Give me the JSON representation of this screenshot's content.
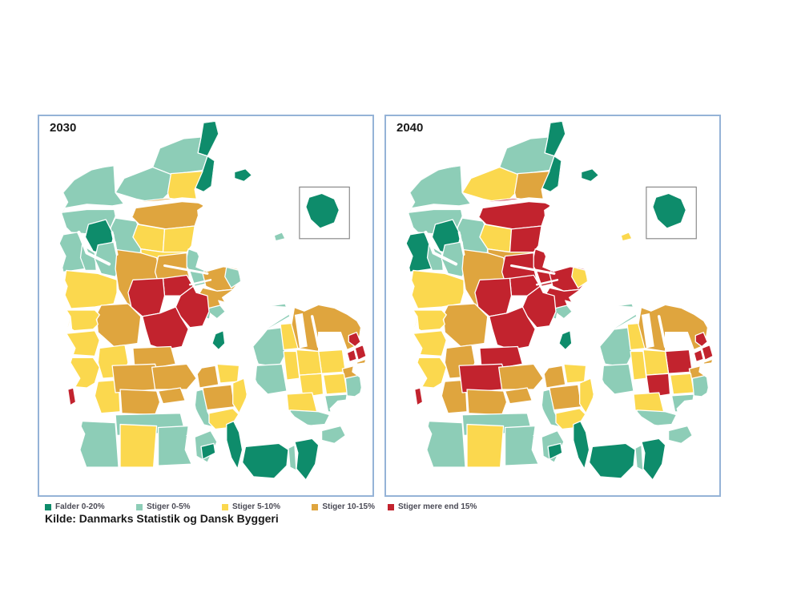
{
  "panels": [
    {
      "title": "2030",
      "year_index": 0
    },
    {
      "title": "2040",
      "year_index": 1
    }
  ],
  "legend": {
    "items": [
      {
        "code": "G",
        "label": "Falder 0-20%",
        "color": "#0E8C6B",
        "panel": "left"
      },
      {
        "code": "T",
        "label": "Stiger 0-5%",
        "color": "#8DCDB7",
        "panel": "left"
      },
      {
        "code": "Y",
        "label": "Stiger 5-10%",
        "color": "#FBD84E",
        "panel": "left"
      },
      {
        "code": "O",
        "label": "Stiger 10-15%",
        "color": "#DFA53E",
        "panel": "left"
      },
      {
        "code": "R",
        "label": "Stiger mere end 15%",
        "color": "#C2232E",
        "panel": "right"
      }
    ]
  },
  "source": "Kilde: Danmarks Statistik og Dansk Byggeri",
  "map_data": {
    "description": "Choropleth of Danish municipalities, value category per region for 2030 and 2040",
    "regions": {
      "skagen": [
        "G",
        "G"
      ],
      "hjorring": [
        "T",
        "T"
      ],
      "frederikshavn": [
        "G",
        "G"
      ],
      "jammerbugt": [
        "T",
        "Y"
      ],
      "bronderslev": [
        "Y",
        "O"
      ],
      "aalborg": [
        "O",
        "R"
      ],
      "rebild_w": [
        "Y",
        "Y"
      ],
      "rebild_e": [
        "Y",
        "R"
      ],
      "mariagerfjord": [
        "Y",
        "O"
      ],
      "randersfjord": [
        "T",
        "R"
      ],
      "vesthimmerland": [
        "T",
        "T"
      ],
      "thy": [
        "T",
        "T"
      ],
      "mors": [
        "G",
        "G"
      ],
      "lemvig": [
        "T",
        "G"
      ],
      "struer": [
        "T",
        "T"
      ],
      "skive": [
        "T",
        "T"
      ],
      "viborg": [
        "O",
        "O"
      ],
      "randers": [
        "O",
        "R"
      ],
      "norddjurs": [
        "O",
        "R"
      ],
      "djurstip": [
        "T",
        "Y"
      ],
      "syddjurs": [
        "O",
        "R"
      ],
      "mols": [
        "T",
        "T"
      ],
      "favrskov": [
        "R",
        "R"
      ],
      "silkeborg": [
        "R",
        "R"
      ],
      "aarhus": [
        "R",
        "R"
      ],
      "skanderborg": [
        "R",
        "R"
      ],
      "herning": [
        "O",
        "O"
      ],
      "holstebro": [
        "Y",
        "Y"
      ],
      "ringkobing": [
        "Y",
        "Y"
      ],
      "varde": [
        "Y",
        "Y"
      ],
      "billund": [
        "Y",
        "O"
      ],
      "esbjerg": [
        "Y",
        "Y"
      ],
      "fano": [
        "R",
        "R"
      ],
      "vejen": [
        "Y",
        "O"
      ],
      "kolding": [
        "O",
        "O"
      ],
      "vejle": [
        "O",
        "R"
      ],
      "horsens": [
        "O",
        "R"
      ],
      "hedensted": [
        "O",
        "O"
      ],
      "fredericia": [
        "O",
        "O"
      ],
      "haderslev": [
        "T",
        "T"
      ],
      "tonder": [
        "T",
        "T"
      ],
      "aabenraa": [
        "Y",
        "Y"
      ],
      "sonderborg": [
        "T",
        "T"
      ],
      "als": [
        "T",
        "T"
      ],
      "laeso": [
        "G",
        "G"
      ],
      "anholt": [
        "T",
        "Y"
      ],
      "samso": [
        "G",
        "G"
      ],
      "middelfart": [
        "O",
        "O"
      ],
      "nordfyn": [
        "Y",
        "Y"
      ],
      "odense": [
        "O",
        "O"
      ],
      "nyborg": [
        "Y",
        "Y"
      ],
      "assens": [
        "T",
        "T"
      ],
      "svendborg": [
        "Y",
        "Y"
      ],
      "langeland": [
        "G",
        "G"
      ],
      "aero": [
        "G",
        "G"
      ],
      "odsherred": [
        "T",
        "T"
      ],
      "kalundborg": [
        "T",
        "T"
      ],
      "holbaek": [
        "Y",
        "Y"
      ],
      "northzealand": [
        "O",
        "O"
      ],
      "roskilde": [
        "Y",
        "R"
      ],
      "lejre": [
        "Y",
        "Y"
      ],
      "cph1": [
        "R",
        "R"
      ],
      "cph2": [
        "R",
        "R"
      ],
      "cph3": [
        "R",
        "R"
      ],
      "amager": [
        "O",
        "O"
      ],
      "greve": [
        "O",
        "O"
      ],
      "koge": [
        "Y",
        "Y"
      ],
      "soro": [
        "Y",
        "Y"
      ],
      "ringsted": [
        "Y",
        "R"
      ],
      "slagelse": [
        "T",
        "T"
      ],
      "naestved": [
        "Y",
        "Y"
      ],
      "faxe": [
        "T",
        "T"
      ],
      "stevns": [
        "T",
        "T"
      ],
      "vordingborg": [
        "T",
        "T"
      ],
      "mon": [
        "T",
        "T"
      ],
      "lolland": [
        "G",
        "G"
      ],
      "falster": [
        "G",
        "G"
      ],
      "guldborg": [
        "T",
        "T"
      ],
      "bornholm": [
        "G",
        "G"
      ]
    }
  }
}
